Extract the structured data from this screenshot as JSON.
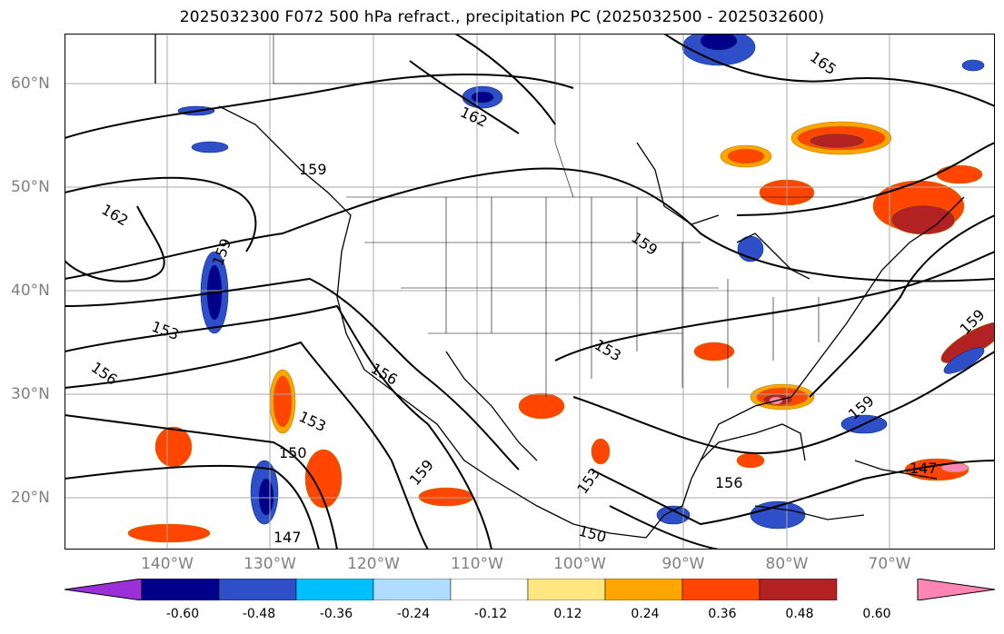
{
  "title": "2025032300 F072 500 hPa refract., precipitation PC (2025032500 - 2025032600)",
  "lat_labels": [
    "60°N",
    "50°N",
    "40°N",
    "30°N",
    "20°N"
  ],
  "lon_labels": [
    "140°W",
    "130°W",
    "120°W",
    "110°W",
    "100°W",
    "90°W",
    "80°W",
    "70°W"
  ],
  "contour_labels": [
    "165",
    "162",
    "162",
    "159",
    "159",
    "159",
    "159",
    "159",
    "159",
    "156",
    "156",
    "156",
    "153",
    "153",
    "153",
    "153",
    "150",
    "150",
    "147",
    "147"
  ],
  "colorbar": {
    "colors": [
      "#9b30d9",
      "#00008b",
      "#2f4fc8",
      "#00bfff",
      "#b0dcff",
      "#ffffff",
      "#ffe680",
      "#ffa500",
      "#ff4500",
      "#b22222",
      "#ff85b4"
    ],
    "tick_labels": [
      "-0.60",
      "-0.48",
      "-0.36",
      "-0.24",
      "-0.12",
      "0.12",
      "0.24",
      "0.36",
      "0.48",
      "0.60"
    ]
  }
}
